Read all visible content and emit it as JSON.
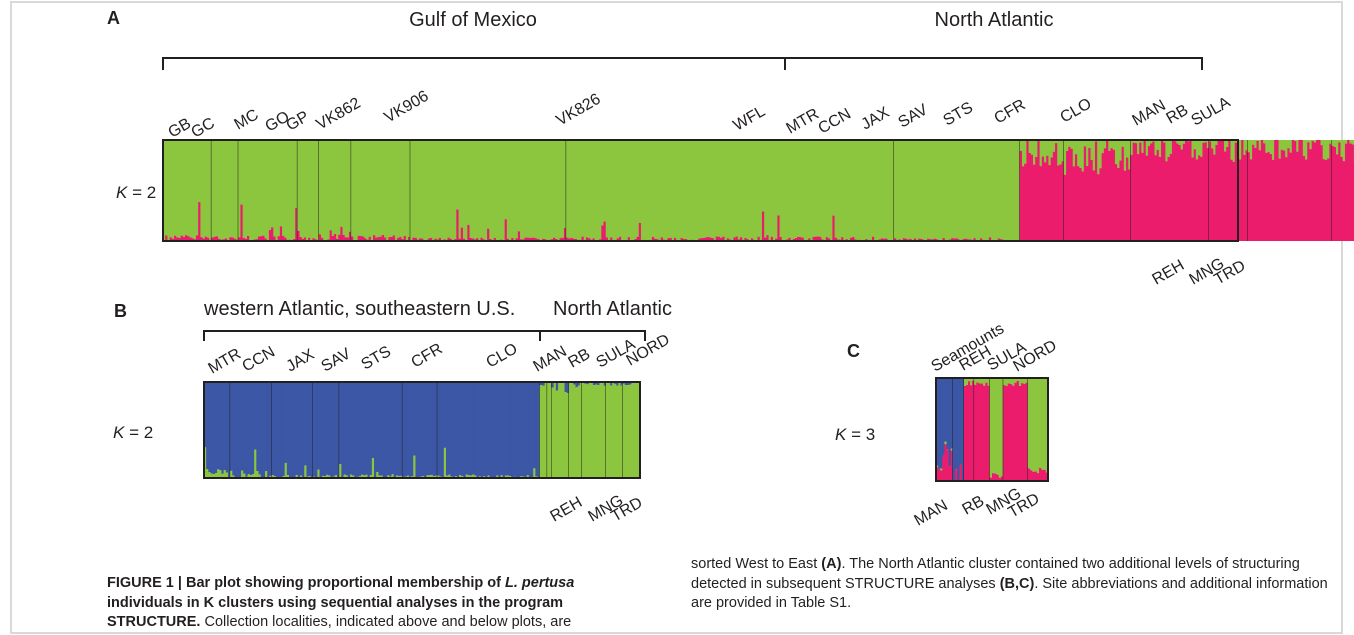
{
  "colors": {
    "green": "#8cc63f",
    "pink": "#ec1c6c",
    "blue": "#3b57a5"
  },
  "panelA": {
    "letter": "A",
    "regions": [
      {
        "label": "Gulf of Mexico",
        "from": 0,
        "to": 0.5
      },
      {
        "label": "North Atlantic",
        "from": 0.5,
        "to": 1
      }
    ],
    "k_label": "K = 2",
    "sites_top": [
      "GB",
      "GC",
      "MC",
      "GO",
      "GP",
      "VK862",
      "VK906",
      "VK826",
      "WFL",
      "MTR",
      "CCN",
      "JAX",
      "SAV",
      "STS",
      "CFR",
      "CLO",
      "MAN",
      "RB",
      "SULA"
    ],
    "sites_bottom": [
      "REH",
      "MNG",
      "TRD"
    ],
    "segments": [
      {
        "w": 0.045,
        "membership": 0.97,
        "var": 0.03
      },
      {
        "w": 0.025,
        "membership": 0.97,
        "var": 0.02
      },
      {
        "w": 0.055,
        "membership": 0.975,
        "var": 0.03
      },
      {
        "w": 0.02,
        "membership": 0.975,
        "var": 0.03
      },
      {
        "w": 0.03,
        "membership": 0.95,
        "var": 0.06
      },
      {
        "w": 0.055,
        "membership": 0.97,
        "var": 0.03
      },
      {
        "w": 0.145,
        "membership": 0.985,
        "var": 0.02
      },
      {
        "w": 0.305,
        "membership": 0.98,
        "var": 0.025
      },
      {
        "w": 0.117,
        "membership": 0.985,
        "var": 0.015
      },
      {
        "w": 0.041,
        "membership": 0.12,
        "var": 0.15
      },
      {
        "w": 0.062,
        "membership": 0.2,
        "var": 0.15
      },
      {
        "w": 0.073,
        "membership": 0.1,
        "var": 0.12
      },
      {
        "w": 0.036,
        "membership": 0.08,
        "var": 0.15
      },
      {
        "w": 0.078,
        "membership": 0.08,
        "var": 0.12
      },
      {
        "w": 0.052,
        "membership": 0.13,
        "var": 0.12
      },
      {
        "w": 0.135,
        "membership": 0.12,
        "var": 0.15
      },
      {
        "w": 0.017,
        "membership": 0.04,
        "var": 0.02
      },
      {
        "w": 0.01,
        "membership": 0.04,
        "var": 0.02
      },
      {
        "w": 0.012,
        "membership": 0.04,
        "var": 0.02
      },
      {
        "w": 0.03,
        "membership": 0.04,
        "var": 0.02
      },
      {
        "w": 0.018,
        "membership": 0.04,
        "var": 0.02
      },
      {
        "w": 0.034,
        "membership": 0.04,
        "var": 0.02
      },
      {
        "w": 0.025,
        "membership": 0.04,
        "var": 0.02
      },
      {
        "w": 0.065,
        "membership": 0.04,
        "var": 0.02
      }
    ]
  },
  "panelB": {
    "letter": "B",
    "regions": [
      {
        "label": "western Atlantic, southeastern U.S.",
        "from": 0,
        "to": 0.77
      },
      {
        "label": "North Atlantic",
        "from": 0.77,
        "to": 1
      }
    ],
    "k_label": "K = 2",
    "sites_top": [
      "MTR",
      "CCN",
      "JAX",
      "SAV",
      "STS",
      "CFR",
      "CLO",
      "MAN",
      "RB",
      "SULA",
      "NORD"
    ],
    "sites_bottom": [
      "REH",
      "MNG",
      "TRD"
    ],
    "segments": [
      {
        "w": 0.06,
        "membership": 0.95,
        "var": 0.06
      },
      {
        "w": 0.095,
        "membership": 0.97,
        "var": 0.05
      },
      {
        "w": 0.095,
        "membership": 0.985,
        "var": 0.02
      },
      {
        "w": 0.06,
        "membership": 0.985,
        "var": 0.02
      },
      {
        "w": 0.145,
        "membership": 0.98,
        "var": 0.02
      },
      {
        "w": 0.08,
        "membership": 0.985,
        "var": 0.02
      },
      {
        "w": 0.235,
        "membership": 0.985,
        "var": 0.02
      },
      {
        "w": 0.017,
        "membership": 0.02,
        "var": 0.02
      },
      {
        "w": 0.01,
        "membership": 0.02,
        "var": 0.02
      },
      {
        "w": 0.04,
        "membership": 0.04,
        "var": 0.1
      },
      {
        "w": 0.03,
        "membership": 0.03,
        "var": 0.05
      },
      {
        "w": 0.055,
        "membership": 0.02,
        "var": 0.02
      },
      {
        "w": 0.038,
        "membership": 0.02,
        "var": 0.02
      },
      {
        "w": 0.04,
        "membership": 0.02,
        "var": 0.02
      }
    ]
  },
  "panelC": {
    "letter": "C",
    "k_label": "K = 3",
    "sites_top": [
      "Seamounts",
      "REH",
      "SULA",
      "NORD"
    ],
    "sites_bottom": [
      "MAN",
      "RB",
      "MNG",
      "TRD"
    ],
    "segments": [
      {
        "w": 0.15,
        "a": 0.75,
        "b": 0.0
      },
      {
        "w": 0.1,
        "a": 0.98,
        "b": 0.0
      },
      {
        "w": 0.09,
        "a": 0.0,
        "b": 0.05
      },
      {
        "w": 0.14,
        "a": 0.0,
        "b": 0.05
      },
      {
        "w": 0.12,
        "a": 0.0,
        "b": 0.95
      },
      {
        "w": 0.22,
        "a": 0.0,
        "b": 0.05
      },
      {
        "w": 0.18,
        "a": 0.0,
        "b": 0.9
      }
    ]
  },
  "caption": {
    "bold_lead": "FIGURE 1 | Bar plot showing proportional membership of ",
    "species": "L. pertusa",
    "bold_tail": " individuals in K clusters using sequential analyses in the program STRUCTURE.",
    "text1": " Collection localities, indicated above and below plots, are sorted West to East ",
    "ref_a": "(A)",
    "text2": ". The North Atlantic cluster contained two additional levels of structuring detected in subsequent STRUCTURE analyses ",
    "ref_bc": "(B,C)",
    "text3": ". Site abbreviations and additional information are provided in Table S1."
  }
}
